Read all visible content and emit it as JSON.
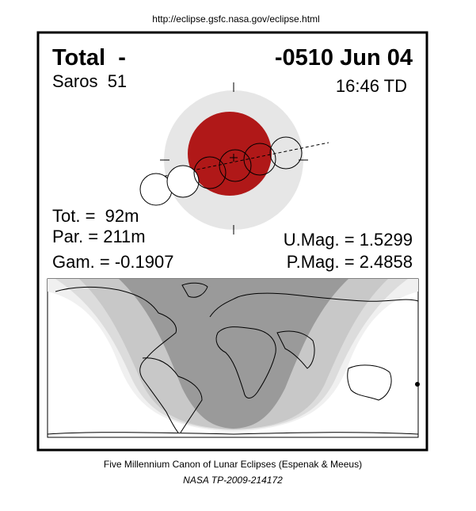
{
  "header": {
    "url": "http://eclipse.gsfc.nasa.gov/eclipse.html"
  },
  "eclipse": {
    "type": "Total  -",
    "date": "-0510 Jun 04",
    "saros": "Saros  51",
    "time": "16:46 TD",
    "totality": "Tot. =  92m",
    "partial": "Par. = 211m",
    "gamma": "Gam. = -0.1907",
    "umbral_magnitude": "U.Mag. = 1.5299",
    "penumbral_magnitude": "P.Mag. = 2.4858"
  },
  "footer": {
    "canon": "Five Millennium Canon of Lunar Eclipses (Espenak & Meeus)",
    "reference": "NASA TP-2009-214172"
  }
}
